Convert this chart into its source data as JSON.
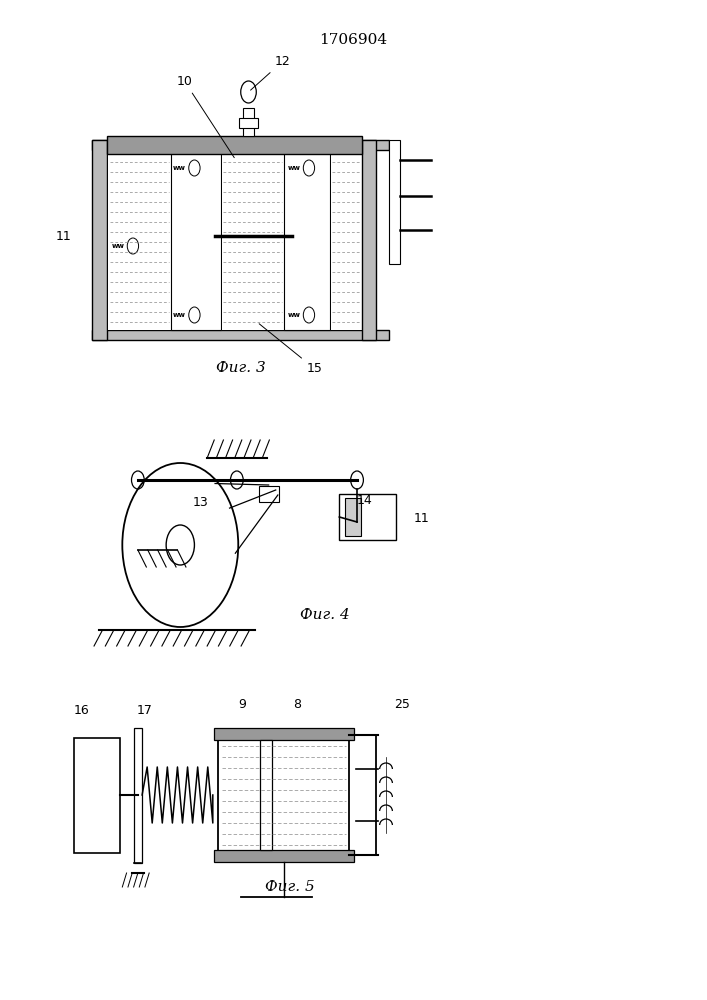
{
  "title": "1706904",
  "fig3_label": "Фиг. 3",
  "fig4_label": "Фиг. 4",
  "fig5_label": "Фиг. 5",
  "bg_color": "#ffffff",
  "line_color": "#000000"
}
